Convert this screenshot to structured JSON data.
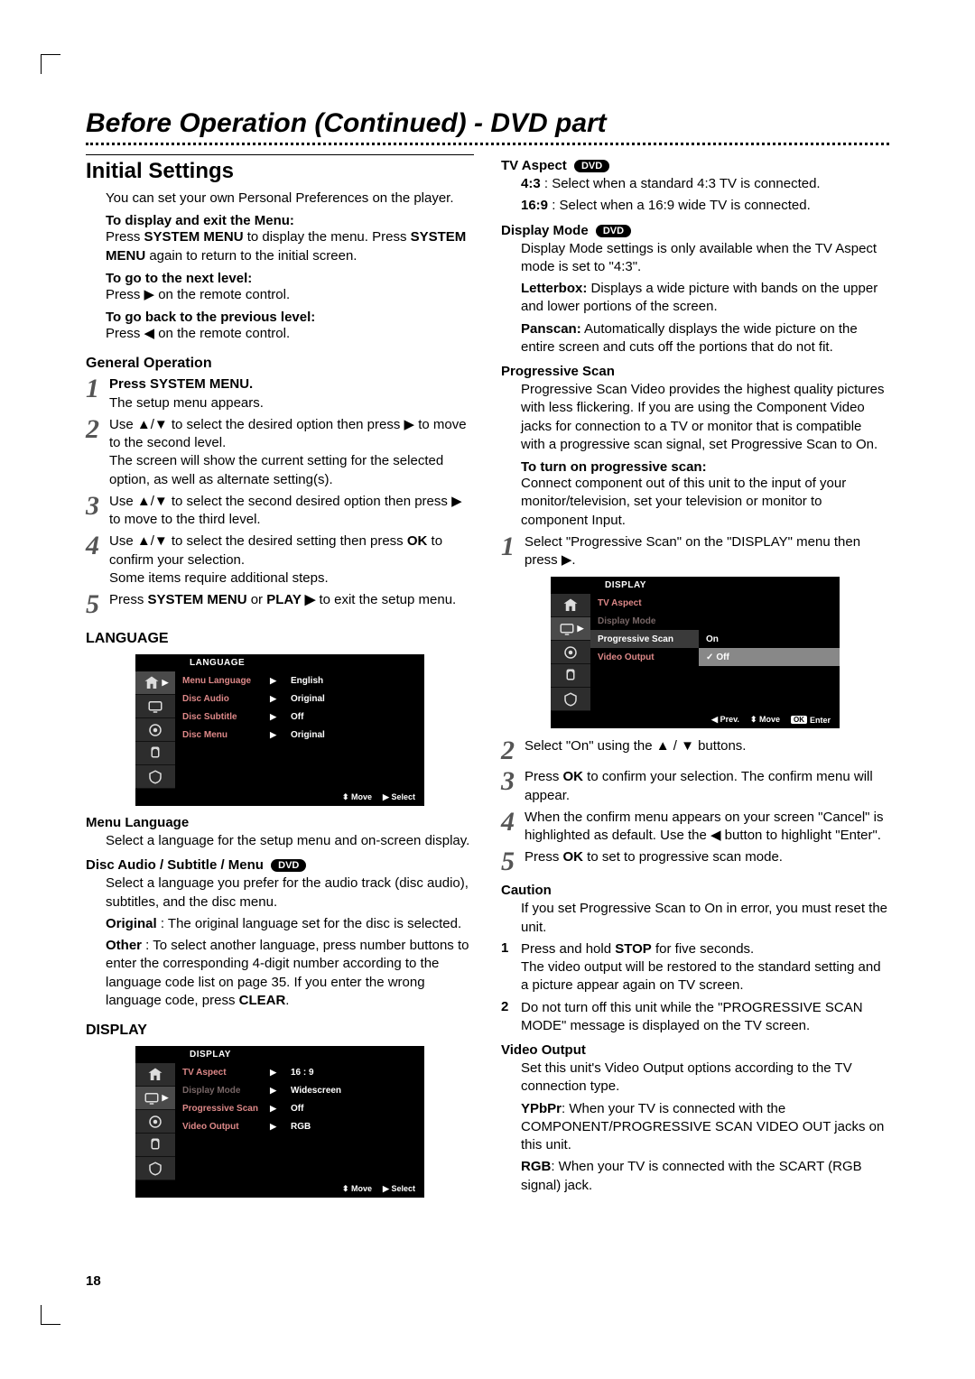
{
  "pageTitle": "Before Operation (Continued) - DVD part",
  "pageNumber": "18",
  "left": {
    "sectionTitle": "Initial Settings",
    "intro": "You can set your own Personal Preferences on the player.",
    "displayExit": {
      "head": "To display and exit the Menu:",
      "text": "Press SYSTEM MENU to display the menu. Press SYSTEM MENU again to return to the initial screen."
    },
    "nextLevel": {
      "head": "To go to the next level:",
      "text": "Press ▶ on the remote control."
    },
    "prevLevel": {
      "head": "To go back to the previous level:",
      "text": "Press ◀ on the remote control."
    },
    "generalOp": {
      "head": "General Operation",
      "steps": [
        {
          "n": "1",
          "t": "<b>Press SYSTEM MENU.</b><br>The setup menu appears."
        },
        {
          "n": "2",
          "t": "Use ▲/▼ to select the desired option then press ▶ to move to the second level.<br>The screen will show the current setting for the selected option, as well as alternate setting(s)."
        },
        {
          "n": "3",
          "t": "Use ▲/▼ to select the second desired option then press ▶ to move to the third level."
        },
        {
          "n": "4",
          "t": "Use ▲/▼ to select the desired setting then press <b>OK</b> to confirm your selection.<br>Some items require additional steps."
        },
        {
          "n": "5",
          "t": "Press <b>SYSTEM MENU</b> or <b>PLAY ▶</b> to exit the setup menu."
        }
      ]
    },
    "languageHead": "LANGUAGE",
    "languageMenu": {
      "title": "LANGUAGE",
      "rows": [
        {
          "label": "Menu Language",
          "value": "English"
        },
        {
          "label": "Disc Audio",
          "value": "Original"
        },
        {
          "label": "Disc Subtitle",
          "value": "Off"
        },
        {
          "label": "Disc Menu",
          "value": "Original"
        }
      ],
      "footer": {
        "move": "Move",
        "select": "Select"
      }
    },
    "menuLanguage": {
      "head": "Menu Language",
      "text": "Select a language for the setup menu and on-screen display."
    },
    "discAudio": {
      "head": "Disc Audio / Subtitle / Menu",
      "pill": "DVD",
      "p1": "Select a language you prefer for the audio track (disc audio), subtitles, and the disc menu.",
      "p2": "<b>Original</b> : The original language set for the disc is selected.",
      "p3": "<b>Other</b> : To select another language, press number buttons to enter the corresponding 4-digit number according to the language code list on page 35. If you enter the wrong language code, press <b>CLEAR</b>."
    },
    "displayHead": "DISPLAY",
    "displayMenu": {
      "title": "DISPLAY",
      "rows": [
        {
          "label": "TV Aspect",
          "value": "16  :  9"
        },
        {
          "label": "Display Mode",
          "value": "Widescreen",
          "dim": true
        },
        {
          "label": "Progressive Scan",
          "value": "Off"
        },
        {
          "label": "Video Output",
          "value": "RGB"
        }
      ],
      "footer": {
        "move": "Move",
        "select": "Select"
      }
    }
  },
  "right": {
    "tvAspect": {
      "head": "TV Aspect",
      "pill": "DVD",
      "p1": "<b>4:3</b> : Select when a standard 4:3 TV is connected.",
      "p2": "<b>16:9</b> : Select when a 16:9 wide TV is connected."
    },
    "displayMode": {
      "head": "Display Mode",
      "pill": "DVD",
      "p1": "Display Mode settings is only available when the TV Aspect mode is set to \"4:3\".",
      "p2": "<b>Letterbox:</b> Displays a wide picture with bands on the upper and lower portions of the screen.",
      "p3": "<b>Panscan:</b> Automatically displays the wide picture on the entire screen and cuts off the portions that do not fit."
    },
    "progScan": {
      "head": "Progressive Scan",
      "p1": "Progressive Scan Video provides the highest quality pictures with less flickering. If you are using the Component Video jacks for connection to a TV or monitor that is compatible with a progressive scan signal, set Progressive Scan to On.",
      "sub": "To turn on progressive scan:",
      "p2": "Connect component out of this unit to the input of your monitor/television, set your television or monitor to component Input.",
      "step1": "Select \"Progressive Scan\" on the \"DISPLAY\" menu then press ▶."
    },
    "progMenu": {
      "title": "DISPLAY",
      "rows": [
        {
          "label": "TV Aspect",
          "value": ""
        },
        {
          "label": "Display Mode",
          "value": "",
          "dim": true
        },
        {
          "label": "Progressive Scan",
          "value": "On",
          "hiLeft": true
        },
        {
          "label": "Video Output",
          "value": "Off",
          "hiRight": true,
          "check": true
        }
      ],
      "footer": {
        "prev": "Prev.",
        "move": "Move",
        "enter": "Enter"
      }
    },
    "progSteps": [
      {
        "n": "2",
        "t": "Select \"On\" using the ▲ / ▼ buttons."
      },
      {
        "n": "3",
        "t": "Press <b>OK</b> to confirm your selection. The confirm menu will appear."
      },
      {
        "n": "4",
        "t": "When the confirm menu appears on your screen \"Cancel\" is highlighted as default. Use the ◀ button to highlight \"Enter\"."
      },
      {
        "n": "5",
        "t": "Press <b>OK</b> to set to progressive scan mode."
      }
    ],
    "caution": {
      "head": "Caution",
      "p1": "If you set Progressive Scan to On in error, you must reset the unit.",
      "items": [
        {
          "n": "1",
          "t": "Press and hold <b>STOP</b> for five seconds.<br>The video output will be restored to the standard setting and a picture appear again on TV screen."
        },
        {
          "n": "2",
          "t": "Do not turn off this unit while the \"PROGRESSIVE SCAN MODE\" message is displayed on the TV screen."
        }
      ]
    },
    "videoOut": {
      "head": "Video Output",
      "p1": "Set this unit's Video Output options according to the TV connection type.",
      "p2": "<b>YPbPr</b>: When your TV is connected with the COMPONENT/PROGRESSIVE SCAN VIDEO OUT jacks on this unit.",
      "p3": "<b>RGB</b>: When your TV is connected with the SCART (RGB signal) jack."
    }
  },
  "osdIconColors": {
    "icon": "#dddddd",
    "activeBg": "#4a4a4a",
    "bg": "#2d2d2d"
  }
}
